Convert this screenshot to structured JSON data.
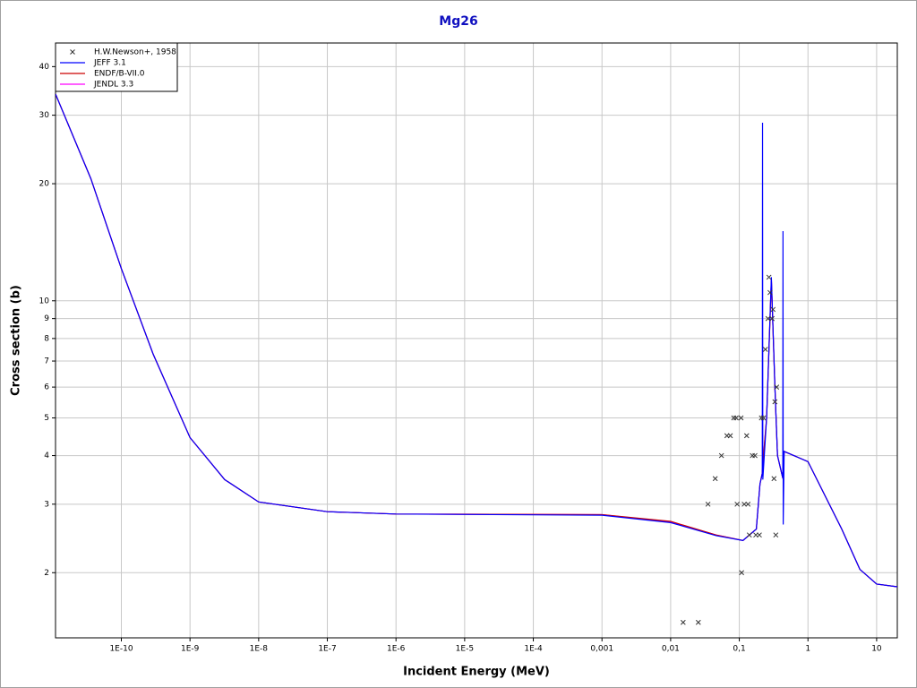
{
  "chart_data": {
    "type": "line",
    "title": "Mg26",
    "xlabel": "Incident Energy (MeV)",
    "ylabel": "Cross section (b)",
    "xlog": true,
    "ylog": true,
    "grid": true,
    "legend": "upper left",
    "xlim": [
      1.1e-11,
      20
    ],
    "ylim": [
      1.36,
      46
    ],
    "xticks": [
      {
        "value": 1e-10,
        "label": "1E-10"
      },
      {
        "value": 1e-09,
        "label": "1E-9"
      },
      {
        "value": 1e-08,
        "label": "1E-8"
      },
      {
        "value": 1e-07,
        "label": "1E-7"
      },
      {
        "value": 1e-06,
        "label": "1E-6"
      },
      {
        "value": 1e-05,
        "label": "1E-5"
      },
      {
        "value": 0.0001,
        "label": "1E-4"
      },
      {
        "value": 0.001,
        "label": "0,001"
      },
      {
        "value": 0.01,
        "label": "0,01"
      },
      {
        "value": 0.1,
        "label": "0,1"
      },
      1,
      10
    ],
    "yticks": [
      2,
      3,
      4,
      5,
      6,
      7,
      8,
      9,
      10,
      20,
      30,
      40
    ],
    "series": [
      {
        "name": "H.W.Newson+, 1958",
        "type": "scatter",
        "color": "#333333",
        "x": [
          0.0152,
          0.0253,
          0.035,
          0.0446,
          0.055,
          0.066,
          0.074,
          0.083,
          0.09,
          0.093,
          0.106,
          0.108,
          0.118,
          0.128,
          0.134,
          0.14,
          0.155,
          0.169,
          0.174,
          0.196,
          0.21,
          0.225,
          0.24,
          0.262,
          0.27,
          0.28,
          0.3,
          0.31,
          0.32,
          0.33,
          0.34,
          0.35
        ],
        "values": [
          1.49,
          1.49,
          3.0,
          3.49,
          4.0,
          4.5,
          4.5,
          5.0,
          5.0,
          3.0,
          5.0,
          2.0,
          3.0,
          4.5,
          3.0,
          2.5,
          4.0,
          4.0,
          2.5,
          2.5,
          5.0,
          5.0,
          7.5,
          9.0,
          11.5,
          10.5,
          9.0,
          9.5,
          3.49,
          5.5,
          2.5,
          6.0
        ]
      },
      {
        "name": "JEFF 3.1",
        "type": "line",
        "color": "#0000ff",
        "x": [
          1.1e-11,
          3.6e-11,
          1e-10,
          2.9e-10,
          1e-09,
          3.2e-09,
          1e-08,
          1e-07,
          1e-06,
          0.001,
          0.01,
          0.046,
          0.113,
          0.177,
          0.2,
          0.216,
          0.218,
          0.22,
          0.25,
          0.293,
          0.33,
          0.36,
          0.43,
          0.433,
          0.436,
          0.45,
          1,
          3.1,
          5.7,
          10,
          20
        ],
        "values": [
          34,
          20.6,
          12.1,
          7.3,
          4.45,
          3.47,
          3.04,
          2.87,
          2.83,
          2.81,
          2.69,
          2.49,
          2.42,
          2.59,
          3.38,
          3.6,
          28.7,
          3.47,
          5,
          11.5,
          6,
          4,
          3.5,
          15.1,
          2.66,
          4.1,
          3.86,
          2.59,
          2.04,
          1.87,
          1.84
        ]
      },
      {
        "name": "ENDF/B-VII.0",
        "type": "line",
        "color": "#cc0000",
        "x": [
          1.1e-11,
          3.6e-11,
          1e-10,
          2.9e-10,
          1e-09,
          3.2e-09,
          1e-08,
          1e-07,
          1e-06,
          0.001,
          0.01,
          0.046,
          0.113,
          0.177,
          0.2,
          0.216,
          0.218,
          0.22,
          0.25,
          0.293,
          0.33,
          0.36,
          0.43,
          0.433,
          0.436,
          0.45,
          1,
          3.1,
          5.7,
          10,
          20
        ],
        "values": [
          34,
          20.6,
          12.1,
          7.3,
          4.45,
          3.47,
          3.04,
          2.87,
          2.83,
          2.82,
          2.71,
          2.5,
          2.42,
          2.59,
          3.38,
          3.6,
          3.7,
          3.8,
          5,
          11.3,
          6,
          4,
          3.5,
          3.5,
          3.5,
          4.1,
          3.86,
          2.59,
          2.04,
          1.87,
          1.84
        ]
      },
      {
        "name": "JENDL 3.3",
        "type": "line",
        "color": "#ff00ff",
        "x": [
          1.1e-11,
          3.6e-11,
          1e-10,
          2.9e-10,
          1e-09,
          3.2e-09,
          1e-08,
          1e-07,
          1e-06,
          0.001,
          0.01,
          0.046,
          0.113,
          0.177,
          0.2,
          0.216,
          0.218,
          0.22,
          0.25,
          0.293,
          0.33,
          0.36,
          0.43,
          0.433,
          0.436,
          0.45,
          1,
          3.1,
          5.7,
          10,
          20
        ],
        "values": [
          34,
          20.6,
          12.1,
          7.3,
          4.45,
          3.47,
          3.04,
          2.87,
          2.83,
          2.82,
          2.7,
          2.5,
          2.42,
          2.59,
          3.38,
          3.6,
          3.7,
          3.8,
          5,
          11.4,
          6,
          4,
          3.5,
          3.5,
          3.5,
          4.1,
          3.86,
          2.59,
          2.04,
          1.87,
          1.84
        ]
      }
    ]
  }
}
